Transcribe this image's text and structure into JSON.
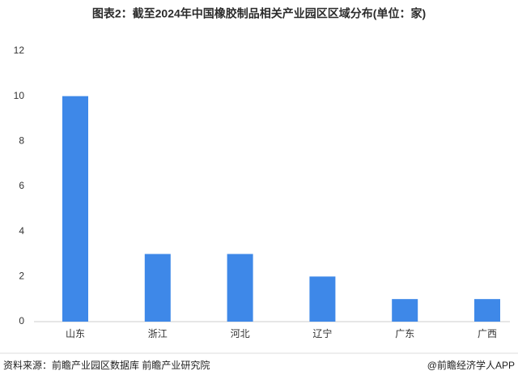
{
  "chart_data": {
    "type": "bar",
    "title": "图表2：截至2024年中国橡胶制品相关产业园区区域分布(单位：家)",
    "categories": [
      "山东",
      "浙江",
      "河北",
      "辽宁",
      "广东",
      "广西"
    ],
    "values": [
      10,
      3,
      3,
      2,
      1,
      1
    ],
    "color": "#3e88e8",
    "ylim": [
      0,
      12
    ],
    "yticks": [
      0,
      2,
      4,
      6,
      8,
      10,
      12
    ],
    "grid": false,
    "source": "资料来源：前瞻产业园区数据库 前瞻产业研究院",
    "credit": "@前瞻经济学人APP"
  }
}
